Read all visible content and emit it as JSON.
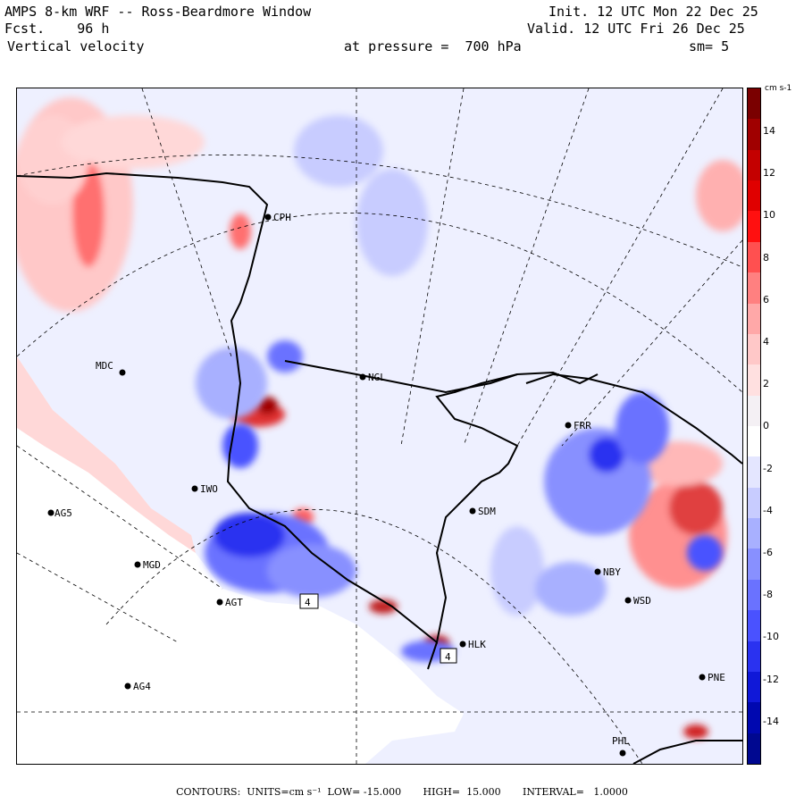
{
  "header": {
    "title": "AMPS 8-km WRF -- Ross-Beardmore Window",
    "forecast": "Fcst.    96 h",
    "field": "Vertical velocity",
    "init": "Init. 12 UTC Mon 22 Dec 25",
    "valid": "Valid. 12 UTC Fri 26 Dec 25",
    "pressure": "at pressure =  700 hPa",
    "smoothing": "sm= 5"
  },
  "map": {
    "stations": [
      {
        "id": "CPH",
        "label": "CPH"
      },
      {
        "id": "MDC",
        "label": "MDC"
      },
      {
        "id": "NGL",
        "label": "NGL"
      },
      {
        "id": "FRR",
        "label": "FRR"
      },
      {
        "id": "IWO",
        "label": "IWO"
      },
      {
        "id": "AG5",
        "label": "AG5"
      },
      {
        "id": "SDM",
        "label": "SDM"
      },
      {
        "id": "MGD",
        "label": "MGD"
      },
      {
        "id": "NBY",
        "label": "NBY"
      },
      {
        "id": "AGT",
        "label": "AGT"
      },
      {
        "id": "WSD",
        "label": "WSD"
      },
      {
        "id": "HLK",
        "label": "HLK"
      },
      {
        "id": "AG4",
        "label": "AG4"
      },
      {
        "id": "PNE",
        "label": "PNE"
      },
      {
        "id": "PHL",
        "label": "PHL"
      }
    ],
    "extrema_markers": [
      {
        "label": "4"
      },
      {
        "label": "4"
      }
    ],
    "colors": {
      "positive": "#cc0000",
      "negative": "#0000cc",
      "background": "#eef0ff"
    }
  },
  "colorbar": {
    "units": "cm s-1",
    "tick_labels": [
      "14",
      "12",
      "10",
      "8",
      "6",
      "4",
      "2",
      "0",
      "-2",
      "-4",
      "-6",
      "-8",
      "-10",
      "-12",
      "-14"
    ],
    "colors": [
      "#7a0000",
      "#a00000",
      "#c40000",
      "#e00000",
      "#ff1010",
      "#ff5050",
      "#ff8080",
      "#ffa8a8",
      "#ffc8c8",
      "#ffe0e0",
      "#f4f0f4",
      "#ffffff",
      "#e4e6ff",
      "#c8ccff",
      "#a8b0ff",
      "#8890ff",
      "#6a72ff",
      "#4a52ff",
      "#2a32f0",
      "#1018d8",
      "#0008b0",
      "#000890"
    ]
  },
  "footer": {
    "text": "CONTOURS:  UNITS=cm s⁻¹  LOW= -15.000       HIGH=  15.000       INTERVAL=   1.0000"
  }
}
